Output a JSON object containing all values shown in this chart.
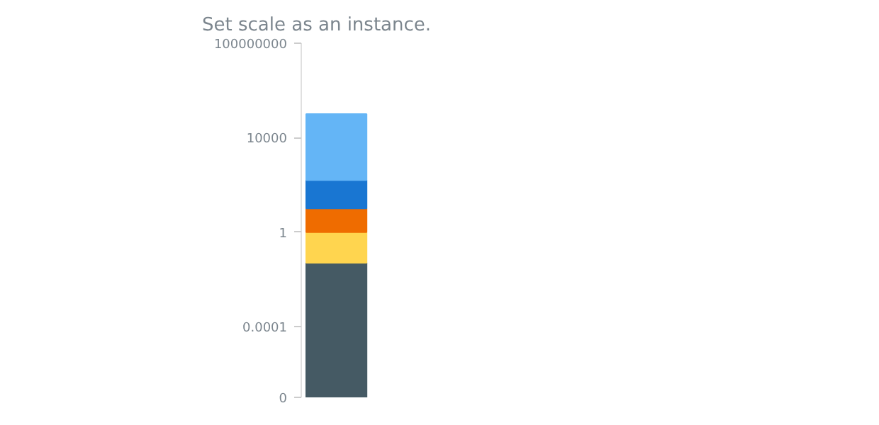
{
  "chart_data": {
    "type": "bar",
    "title": "Set scale as an instance.",
    "categories": [
      null
    ],
    "stacked": true,
    "log": "y",
    "grid": false,
    "ylim": [
      1e-07,
      100000000
    ],
    "yticks": [
      {
        "value": 1e-07,
        "label": "0"
      },
      0.0001,
      1,
      10000,
      100000000
    ],
    "series": [
      {
        "color": "#455a64",
        "values": [
          0.05
        ]
      },
      {
        "color": "#ffd54f",
        "values": [
          0.95
        ]
      },
      {
        "color": "#ef6c00",
        "values": [
          9
        ]
      },
      {
        "color": "#1976d2",
        "values": [
          150
        ]
      },
      {
        "color": "#64b5f6",
        "values": [
          100000
        ]
      }
    ]
  }
}
